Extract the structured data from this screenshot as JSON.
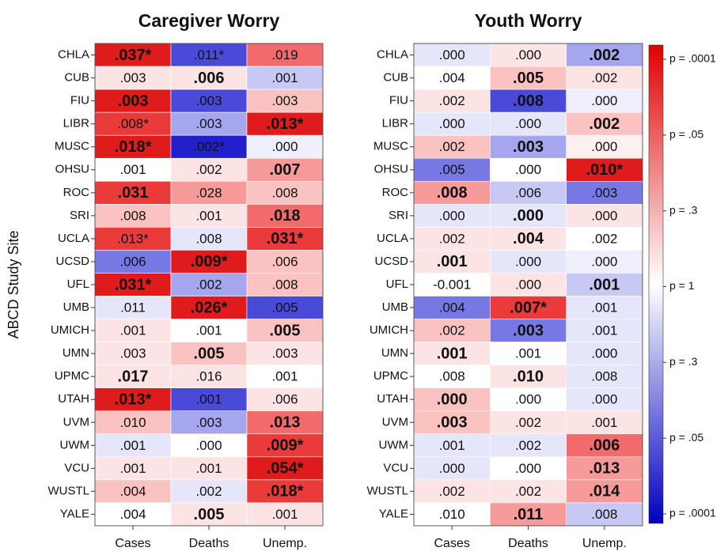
{
  "chart_data": [
    {
      "type": "heatmap",
      "title": "Caregiver Worry",
      "ylabel": "ABCD Study Site",
      "x_categories": [
        "Cases",
        "Deaths",
        "Unemp."
      ],
      "y_categories": [
        "CHLA",
        "CUB",
        "FIU",
        "LIBR",
        "MUSC",
        "OHSU",
        "ROC",
        "SRI",
        "UCLA",
        "UCSD",
        "UFL",
        "UMB",
        "UMICH",
        "UMN",
        "UPMC",
        "UTAH",
        "UVM",
        "UWM",
        "VCU",
        "WUSTL",
        "YALE"
      ],
      "values": [
        [
          0.037,
          0.011,
          0.019
        ],
        [
          0.003,
          0.006,
          0.001
        ],
        [
          0.003,
          0.003,
          0.003
        ],
        [
          0.008,
          0.003,
          0.013
        ],
        [
          0.018,
          0.002,
          0.0
        ],
        [
          0.001,
          0.002,
          0.007
        ],
        [
          0.031,
          0.028,
          0.008
        ],
        [
          0.008,
          0.001,
          0.018
        ],
        [
          0.013,
          0.008,
          0.031
        ],
        [
          0.006,
          0.009,
          0.006
        ],
        [
          0.031,
          0.002,
          0.008
        ],
        [
          0.011,
          0.026,
          0.005
        ],
        [
          0.001,
          0.001,
          0.005
        ],
        [
          0.003,
          0.005,
          0.003
        ],
        [
          0.017,
          0.016,
          0.001
        ],
        [
          0.013,
          0.001,
          0.006
        ],
        [
          0.01,
          0.003,
          0.013
        ],
        [
          0.001,
          0.0,
          0.009
        ],
        [
          0.001,
          0.001,
          0.054
        ],
        [
          0.004,
          0.002,
          0.018
        ],
        [
          0.004,
          0.005,
          0.001
        ]
      ],
      "value_labels": [
        [
          ".037*",
          ".011*",
          ".019"
        ],
        [
          ".003",
          ".006",
          ".001"
        ],
        [
          ".003",
          ".003",
          ".003"
        ],
        [
          ".008*",
          ".003",
          ".013*"
        ],
        [
          ".018*",
          ".002*",
          ".000"
        ],
        [
          ".001",
          ".002",
          ".007"
        ],
        [
          ".031",
          ".028",
          ".008"
        ],
        [
          ".008",
          ".001",
          ".018"
        ],
        [
          ".013*",
          ".008",
          ".031*"
        ],
        [
          ".006",
          ".009*",
          ".006"
        ],
        [
          ".031*",
          ".002",
          ".008"
        ],
        [
          ".011",
          ".026*",
          ".005"
        ],
        [
          ".001",
          ".001",
          ".005"
        ],
        [
          ".003",
          ".005",
          ".003"
        ],
        [
          ".017",
          ".016",
          ".001"
        ],
        [
          ".013*",
          ".001",
          ".006"
        ],
        [
          ".010",
          ".003",
          ".013"
        ],
        [
          ".001",
          ".000",
          ".009*"
        ],
        [
          ".001",
          ".001",
          ".054*"
        ],
        [
          ".004",
          ".002",
          ".018*"
        ],
        [
          ".004",
          ".005",
          ".001"
        ]
      ],
      "bold": [
        [
          true,
          false,
          false
        ],
        [
          false,
          true,
          false
        ],
        [
          true,
          false,
          false
        ],
        [
          false,
          false,
          true
        ],
        [
          true,
          false,
          false
        ],
        [
          false,
          false,
          true
        ],
        [
          true,
          false,
          false
        ],
        [
          false,
          false,
          true
        ],
        [
          false,
          false,
          true
        ],
        [
          false,
          true,
          false
        ],
        [
          true,
          false,
          false
        ],
        [
          false,
          true,
          false
        ],
        [
          false,
          false,
          true
        ],
        [
          false,
          true,
          false
        ],
        [
          true,
          false,
          false
        ],
        [
          true,
          false,
          false
        ],
        [
          false,
          false,
          true
        ],
        [
          false,
          false,
          true
        ],
        [
          false,
          false,
          true
        ],
        [
          false,
          false,
          true
        ],
        [
          false,
          true,
          false
        ]
      ],
      "colors": [
        [
          "#e01b1b",
          "#4a4ad8",
          "#f26b6b"
        ],
        [
          "#fde4e4",
          "#fde4e4",
          "#c8c8f5"
        ],
        [
          "#e01b1b",
          "#4a4ad8",
          "#fbc2c2"
        ],
        [
          "#ea3a3a",
          "#a6a6ee",
          "#e01b1b"
        ],
        [
          "#e01b1b",
          "#2020cc",
          "#f0f0fd"
        ],
        [
          "#ffffff",
          "#fde4e4",
          "#f79a9a"
        ],
        [
          "#ea3a3a",
          "#f79a9a",
          "#fbc2c2"
        ],
        [
          "#fbc2c2",
          "#fde4e4",
          "#f26b6b"
        ],
        [
          "#ea3a3a",
          "#e6e6fb",
          "#ea3a3a"
        ],
        [
          "#7878e4",
          "#e01b1b",
          "#fbc2c2"
        ],
        [
          "#e01b1b",
          "#a6a6ee",
          "#fbc2c2"
        ],
        [
          "#e6e6fb",
          "#e01b1b",
          "#4a4ad8"
        ],
        [
          "#fde4e4",
          "#ffffff",
          "#fbc2c2"
        ],
        [
          "#fde4e4",
          "#fbc2c2",
          "#fde4e4"
        ],
        [
          "#fde4e4",
          "#fde4e4",
          "#ffffff"
        ],
        [
          "#e01b1b",
          "#4a4ad8",
          "#fde4e4"
        ],
        [
          "#fbc2c2",
          "#a6a6ee",
          "#f26b6b"
        ],
        [
          "#e6e6fb",
          "#ffffff",
          "#ea3a3a"
        ],
        [
          "#fde4e4",
          "#fde4e4",
          "#e01b1b"
        ],
        [
          "#fbc2c2",
          "#e6e6fb",
          "#ea3a3a"
        ],
        [
          "#ffffff",
          "#fde4e4",
          "#fde4e4"
        ]
      ]
    },
    {
      "type": "heatmap",
      "title": "Youth Worry",
      "x_categories": [
        "Cases",
        "Deaths",
        "Unemp."
      ],
      "y_categories": [
        "CHLA",
        "CUB",
        "FIU",
        "LIBR",
        "MUSC",
        "OHSU",
        "ROC",
        "SRI",
        "UCLA",
        "UCSD",
        "UFL",
        "UMB",
        "UMICH",
        "UMN",
        "UPMC",
        "UTAH",
        "UVM",
        "UWM",
        "VCU",
        "WUSTL",
        "YALE"
      ],
      "values": [
        [
          0.0,
          0.0,
          0.002
        ],
        [
          0.004,
          0.005,
          0.002
        ],
        [
          0.002,
          0.008,
          0.0
        ],
        [
          0.0,
          0.0,
          0.002
        ],
        [
          0.002,
          0.003,
          0.0
        ],
        [
          0.005,
          0.0,
          0.01
        ],
        [
          0.008,
          0.006,
          0.003
        ],
        [
          0.0,
          0.0,
          0.0
        ],
        [
          0.002,
          0.004,
          0.002
        ],
        [
          0.001,
          0.0,
          0.0
        ],
        [
          -0.001,
          0.0,
          0.001
        ],
        [
          0.004,
          0.007,
          0.001
        ],
        [
          0.002,
          0.003,
          0.001
        ],
        [
          0.001,
          0.001,
          0.0
        ],
        [
          0.008,
          0.01,
          0.008
        ],
        [
          0.0,
          0.0,
          0.0
        ],
        [
          0.003,
          0.002,
          0.001
        ],
        [
          0.001,
          0.002,
          0.006
        ],
        [
          0.0,
          0.0,
          0.013
        ],
        [
          0.002,
          0.002,
          0.014
        ],
        [
          0.01,
          0.011,
          0.008
        ]
      ],
      "value_labels": [
        [
          ".000",
          ".000",
          ".002"
        ],
        [
          ".004",
          ".005",
          ".002"
        ],
        [
          ".002",
          ".008",
          ".000"
        ],
        [
          ".000",
          ".000",
          ".002"
        ],
        [
          ".002",
          ".003",
          ".000"
        ],
        [
          ".005",
          ".000",
          ".010*"
        ],
        [
          ".008",
          ".006",
          ".003"
        ],
        [
          ".000",
          ".000",
          ".000"
        ],
        [
          ".002",
          ".004",
          ".002"
        ],
        [
          ".001",
          ".000",
          ".000"
        ],
        [
          "-0.001",
          ".000",
          ".001"
        ],
        [
          ".004",
          ".007*",
          ".001"
        ],
        [
          ".002",
          ".003",
          ".001"
        ],
        [
          ".001",
          ".001",
          ".000"
        ],
        [
          ".008",
          ".010",
          ".008"
        ],
        [
          ".000",
          ".000",
          ".000"
        ],
        [
          ".003",
          ".002",
          ".001"
        ],
        [
          ".001",
          ".002",
          ".006"
        ],
        [
          ".000",
          ".000",
          ".013"
        ],
        [
          ".002",
          ".002",
          ".014"
        ],
        [
          ".010",
          ".011",
          ".008"
        ]
      ],
      "bold": [
        [
          false,
          false,
          true
        ],
        [
          false,
          true,
          false
        ],
        [
          false,
          true,
          false
        ],
        [
          false,
          false,
          true
        ],
        [
          false,
          true,
          false
        ],
        [
          false,
          false,
          true
        ],
        [
          true,
          false,
          false
        ],
        [
          false,
          true,
          false
        ],
        [
          false,
          true,
          false
        ],
        [
          true,
          false,
          false
        ],
        [
          false,
          false,
          true
        ],
        [
          false,
          true,
          false
        ],
        [
          false,
          true,
          false
        ],
        [
          true,
          false,
          false
        ],
        [
          false,
          true,
          false
        ],
        [
          true,
          false,
          false
        ],
        [
          true,
          false,
          false
        ],
        [
          false,
          false,
          true
        ],
        [
          false,
          false,
          true
        ],
        [
          false,
          false,
          true
        ],
        [
          false,
          true,
          false
        ]
      ],
      "colors": [
        [
          "#e6e6fb",
          "#fde4e4",
          "#a6a6ee"
        ],
        [
          "#ffffff",
          "#fbc2c2",
          "#fde4e4"
        ],
        [
          "#fde4e4",
          "#4a4ad8",
          "#eeeefc"
        ],
        [
          "#e6e6fb",
          "#e6e6fb",
          "#fbc2c2"
        ],
        [
          "#fbc2c2",
          "#a6a6ee",
          "#fdf0f0"
        ],
        [
          "#7878e4",
          "#ffffff",
          "#e01b1b"
        ],
        [
          "#f79a9a",
          "#c8c8f5",
          "#7878e4"
        ],
        [
          "#e6e6fb",
          "#e6e6fb",
          "#fde4e4"
        ],
        [
          "#fde4e4",
          "#fde4e4",
          "#ffffff"
        ],
        [
          "#fde4e4",
          "#e6e6fb",
          "#eeeefc"
        ],
        [
          "#ffffff",
          "#fde4e4",
          "#c8c8f5"
        ],
        [
          "#7878e4",
          "#ea3a3a",
          "#e6e6fb"
        ],
        [
          "#fbc2c2",
          "#7878e4",
          "#e6e6fb"
        ],
        [
          "#fde4e4",
          "#ffffff",
          "#e6e6fb"
        ],
        [
          "#ffffff",
          "#fde4e4",
          "#e6e6fb"
        ],
        [
          "#fbc2c2",
          "#ffffff",
          "#e6e6fb"
        ],
        [
          "#fbc2c2",
          "#fde4e4",
          "#fde4e4"
        ],
        [
          "#e6e6fb",
          "#e6e6fb",
          "#f26b6b"
        ],
        [
          "#e6e6fb",
          "#ffffff",
          "#f79a9a"
        ],
        [
          "#fde4e4",
          "#fde4e4",
          "#f79a9a"
        ],
        [
          "#ffffff",
          "#f79a9a",
          "#c8c8f5"
        ]
      ]
    }
  ],
  "colorbar": {
    "colors": [
      "#e00000",
      "#ffffff",
      "#0000c0"
    ],
    "labels": [
      "p = .0001",
      "p = .05",
      "p = .3",
      "p = 1",
      "p = .3",
      "p = .05",
      "p = .0001"
    ]
  }
}
